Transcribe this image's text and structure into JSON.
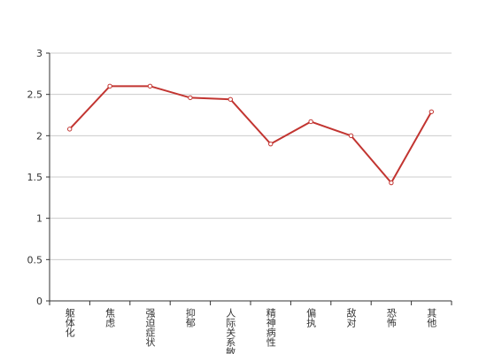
{
  "chart_data": {
    "type": "line",
    "categories": [
      "躯体化",
      "焦虑",
      "强迫症状",
      "抑郁",
      "人际关系敏感",
      "精神病性",
      "偏执",
      "敌对",
      "恐怖",
      "其他"
    ],
    "series": [
      {
        "color": "#c23531",
        "values": [
          2.08,
          2.6,
          2.6,
          2.46,
          2.44,
          1.9,
          2.17,
          2.0,
          1.43,
          2.29
        ]
      }
    ],
    "ylim": [
      0,
      3
    ],
    "yticks": [
      0,
      0.5,
      1,
      1.5,
      2,
      2.5,
      3
    ],
    "grid": true
  }
}
